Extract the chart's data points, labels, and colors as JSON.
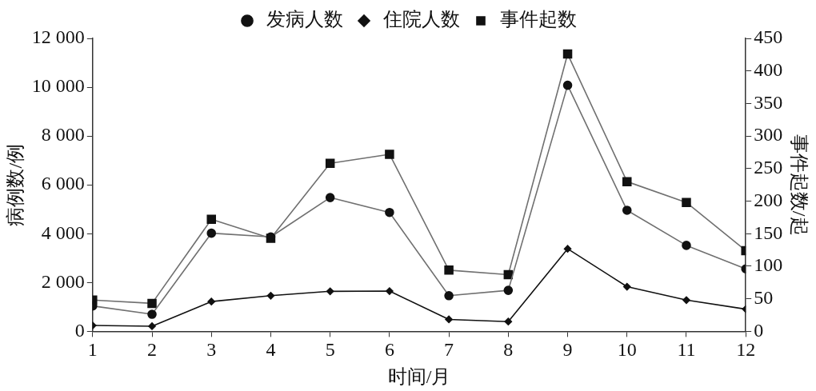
{
  "chart_data": {
    "type": "line",
    "xlabel": "时间/月",
    "ylabel": "病例数/例",
    "y2label": "事件起数/起",
    "x": [
      1,
      2,
      3,
      4,
      5,
      6,
      7,
      8,
      9,
      10,
      11,
      12
    ],
    "xlim": [
      1,
      12
    ],
    "xticks": [
      1,
      2,
      3,
      4,
      5,
      6,
      7,
      8,
      9,
      10,
      11,
      12
    ],
    "ylim": [
      0,
      12000
    ],
    "yticks": [
      0,
      {
        "value": 2000,
        "label": "2 000"
      },
      {
        "value": 4000,
        "label": "4 000"
      },
      {
        "value": 6000,
        "label": "6 000"
      },
      {
        "value": 8000,
        "label": "8 000"
      },
      {
        "value": 10000,
        "label": "10 000"
      },
      {
        "value": 12000,
        "label": "12 000"
      }
    ],
    "y2lim": [
      0,
      450
    ],
    "y2ticks": [
      0,
      50,
      100,
      150,
      200,
      250,
      300,
      350,
      400,
      450
    ],
    "grid": false,
    "legend": "top",
    "line_style": "solid",
    "series": [
      {
        "name": "发病人数",
        "color": "#707070",
        "marker": "circle",
        "values": [
          1040,
          700,
          4020,
          3870,
          5480,
          4870,
          1460,
          1680,
          10080,
          4960,
          3520,
          2560
        ]
      },
      {
        "name": "住院人数",
        "color": "#111111",
        "marker": "diamond",
        "values": [
          240,
          210,
          1220,
          1460,
          1640,
          1650,
          490,
          400,
          3380,
          1830,
          1280,
          910
        ]
      },
      {
        "name": "事件起数",
        "color": "#707070",
        "marker": "square",
        "axis": "y2",
        "values": [
          48,
          43,
          172,
          143,
          258,
          272,
          94,
          87,
          426,
          230,
          198,
          124
        ]
      }
    ]
  }
}
